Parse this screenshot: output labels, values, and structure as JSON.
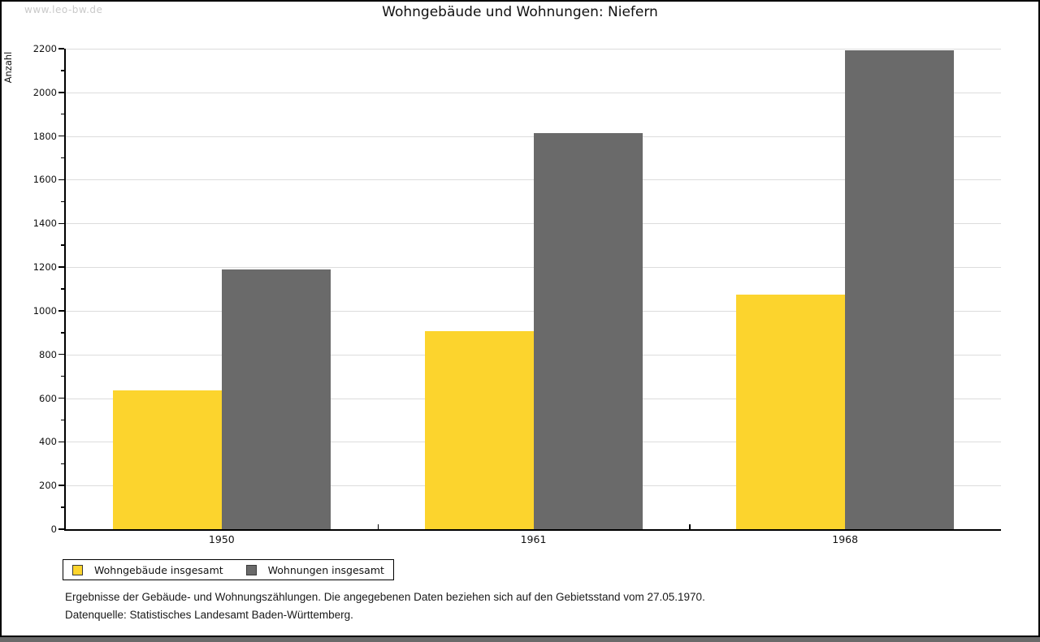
{
  "watermark": "www.leo-bw.de",
  "chart_data": {
    "type": "bar",
    "title": "Wohngebäude und Wohnungen: Niefern",
    "categories": [
      "1950",
      "1961",
      "1968"
    ],
    "series": [
      {
        "name": "Wohngebäude insgesamt",
        "color": "#FCD42D",
        "values": [
          635,
          905,
          1075
        ]
      },
      {
        "name": "Wohnungen insgesamt",
        "color": "#6A6A6A",
        "values": [
          1190,
          1815,
          2193
        ]
      }
    ],
    "xlabel": "",
    "ylabel": "Anzahl",
    "ylim": [
      0,
      2200
    ],
    "ytick_step": 200,
    "yminor_step": 100,
    "grid": true,
    "gridline_color": "#DCDCDC",
    "axis_color": "#000000",
    "legend_position": "bottom-left",
    "bar_gap": 0
  },
  "notes": {
    "line1": "Ergebnisse der Gebäude- und Wohnungszählungen. Die angegebenen Daten beziehen sich auf den Gebietsstand vom 27.05.1970.",
    "line2": "Datenquelle: Statistisches Landesamt Baden-Württemberg."
  }
}
